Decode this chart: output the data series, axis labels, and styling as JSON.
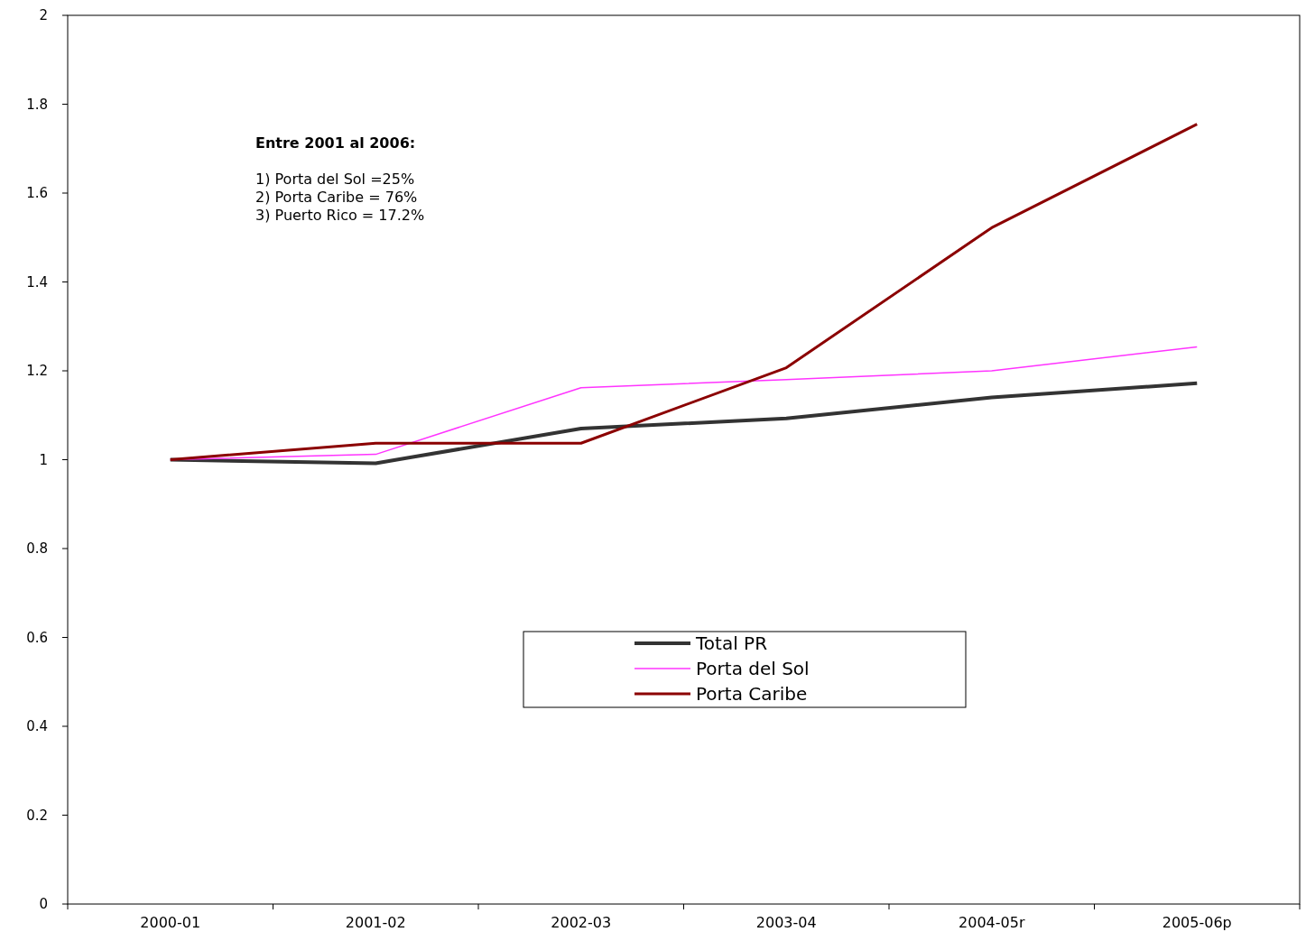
{
  "chart_data": {
    "type": "line",
    "categories": [
      "2000-01",
      "2001-02",
      "2002-03",
      "2003-04",
      "2004-05r",
      "2005-06p"
    ],
    "series": [
      {
        "name": "Total PR",
        "color": "#333333",
        "values": [
          1.0,
          0.992,
          1.07,
          1.093,
          1.14,
          1.172
        ]
      },
      {
        "name": "Porta del Sol",
        "color": "#ff33ff",
        "values": [
          1.0,
          1.012,
          1.162,
          1.18,
          1.2,
          1.254
        ]
      },
      {
        "name": "Porta Caribe",
        "color": "#8b0000",
        "values": [
          1.0,
          1.037,
          1.037,
          1.207,
          1.522,
          1.755
        ]
      }
    ],
    "ylim": [
      0,
      2
    ],
    "yticks": [
      0,
      0.2,
      0.4,
      0.6,
      0.8,
      1,
      1.2,
      1.4,
      1.6,
      1.8,
      2
    ],
    "annotations": [
      "Entre 2001 al 2006:",
      "1) Porta del Sol =25%",
      "2) Porta Caribe = 76%",
      "3) Puerto Rico = 17.2%"
    ],
    "legend": "center",
    "grid": false,
    "line_style": "solid"
  }
}
